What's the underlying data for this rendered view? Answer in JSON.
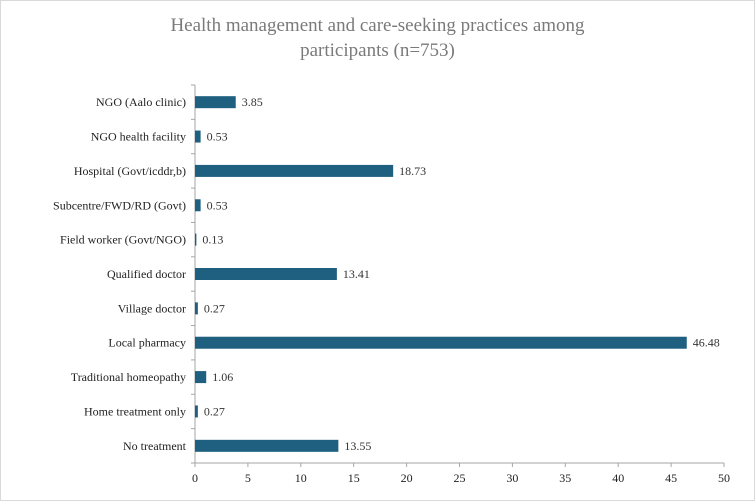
{
  "chart_data": {
    "type": "bar",
    "orientation": "horizontal",
    "title_lines": [
      "Health management and care-seeking practices among",
      "participants (n=753)"
    ],
    "categories": [
      "NGO (Aalo clinic)",
      "NGO health facility",
      "Hospital (Govt/icddr,b)",
      "Subcentre/FWD/RD (Govt)",
      "Field worker (Govt/NGO)",
      "Qualified doctor",
      "Village doctor",
      "Local pharmacy",
      "Traditional homeopathy",
      "Home treatment only",
      "No treatment"
    ],
    "values": [
      3.85,
      0.53,
      18.73,
      0.53,
      0.13,
      13.41,
      0.27,
      46.48,
      1.06,
      0.27,
      13.55
    ],
    "data_labels": [
      "3.85",
      "0.53",
      "18.73",
      "0.53",
      "0.13",
      "13.41",
      "0.27",
      "46.48",
      "1.06",
      "0.27",
      "13.55"
    ],
    "xlim": [
      0,
      50
    ],
    "xticks": [
      0,
      5,
      10,
      15,
      20,
      25,
      30,
      35,
      40,
      45,
      50
    ],
    "xlabel": "",
    "ylabel": "",
    "grid": false,
    "legend": "none",
    "bar_color": "#1f5f7f"
  }
}
